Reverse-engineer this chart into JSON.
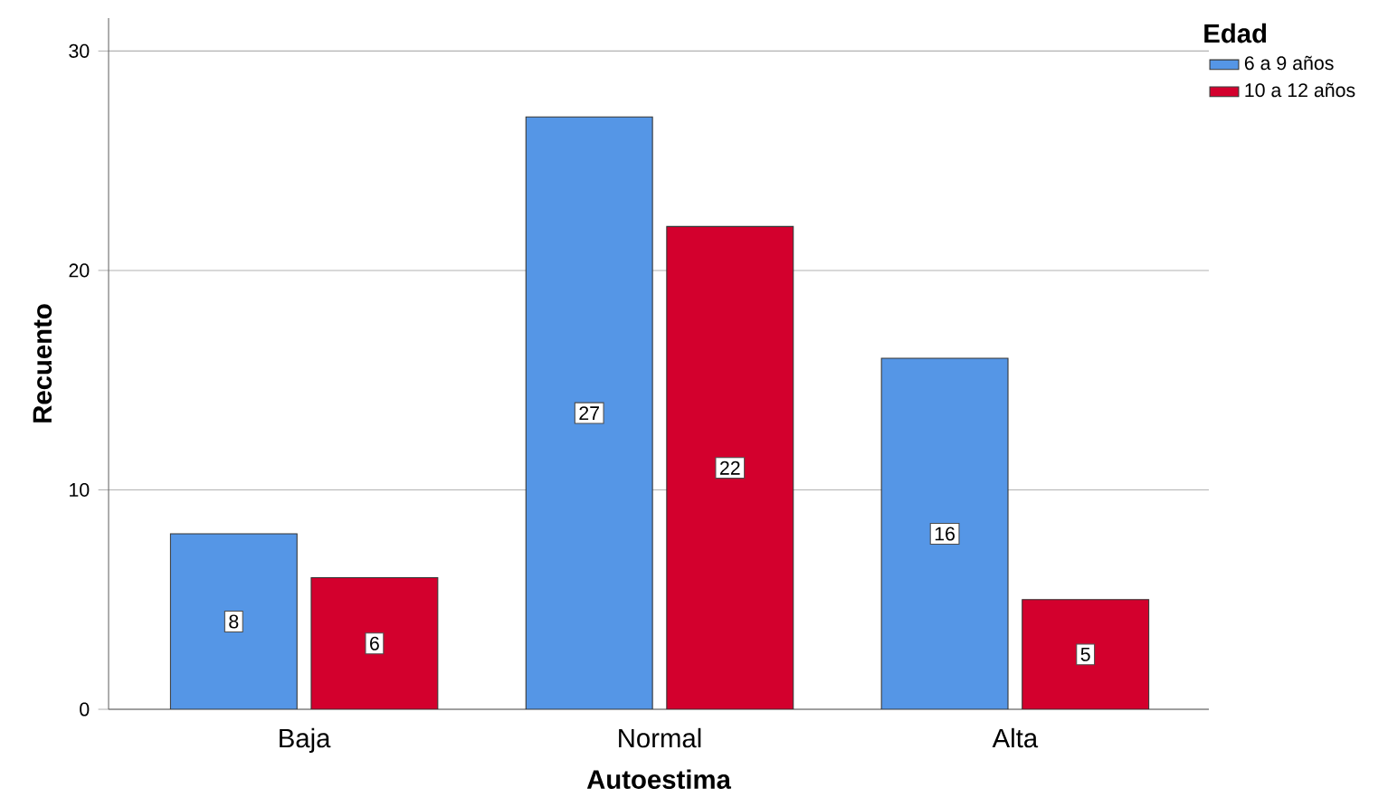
{
  "chart_data": {
    "type": "bar",
    "xlabel": "Autoestima",
    "ylabel": "Recuento",
    "legend_title": "Edad",
    "categories": [
      "Baja",
      "Normal",
      "Alta"
    ],
    "series": [
      {
        "name": "6 a 9 años",
        "color": "#5596e6",
        "values": [
          8,
          27,
          16
        ]
      },
      {
        "name": "10 a 12 años",
        "color": "#d3002d",
        "values": [
          6,
          22,
          5
        ]
      }
    ],
    "ylim": [
      0,
      31.5
    ],
    "yticks": [
      0,
      10,
      20,
      30
    ],
    "grid": "y",
    "legend": "top right",
    "data_labels": true
  }
}
